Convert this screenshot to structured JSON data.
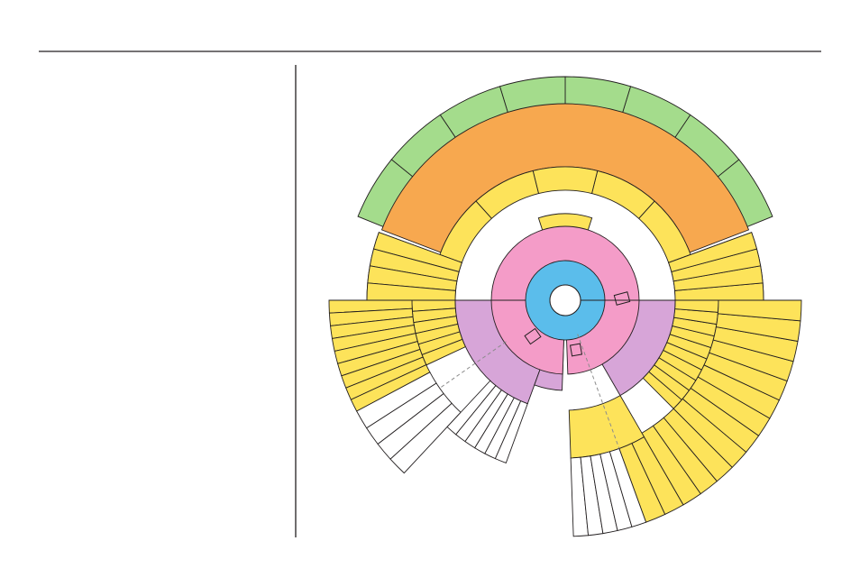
{
  "colors": {
    "background": "#ffffff",
    "rule": "#231f20",
    "center_hole": "#ffffff",
    "core_blue": "#5bbdeb",
    "pink": "#f49cc8",
    "purple": "#d7a5d8",
    "yellow": "#fde35a",
    "orange": "#f7a84f",
    "green": "#a4dc8c",
    "white_cell": "#ffffff",
    "outline": "#231f20",
    "dashed_line": "#8c8c8c"
  },
  "icons": [
    "rectangle-marker-icon"
  ],
  "diagram": {
    "type": "radial-sunburst-diagram",
    "labels": []
  }
}
